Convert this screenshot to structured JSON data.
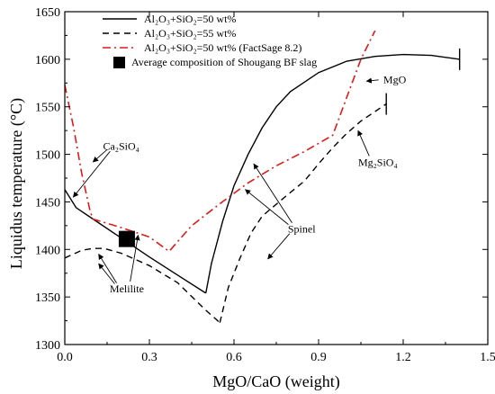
{
  "chart_data": {
    "type": "line",
    "xlabel": "MgO/CaO (weight)",
    "ylabel": "Liquidus temperature (°C)",
    "xlim": [
      0.0,
      1.5
    ],
    "ylim": [
      1300,
      1650
    ],
    "xticks": [
      0.0,
      0.3,
      0.6,
      0.9,
      1.2,
      1.5
    ],
    "xtick_labels": [
      "0.0",
      "0.3",
      "0.6",
      "0.9",
      "1.2",
      "1.5"
    ],
    "yticks": [
      1300,
      1350,
      1400,
      1450,
      1500,
      1550,
      1600,
      1650
    ],
    "ytick_labels": [
      "1300",
      "1350",
      "1400",
      "1450",
      "1500",
      "1550",
      "1600",
      "1650"
    ],
    "grid": false,
    "legend_position": "top-left",
    "series": [
      {
        "name": "Al₂O₃+SiO₂=50 wt%",
        "style": "solid",
        "color": "#000000",
        "segments": [
          [
            [
              0.0,
              1463
            ],
            [
              0.04,
              1444
            ],
            [
              0.1,
              1432
            ],
            [
              0.2,
              1412
            ],
            [
              0.3,
              1392
            ],
            [
              0.4,
              1373
            ],
            [
              0.5,
              1354
            ]
          ],
          [
            [
              0.5,
              1354
            ],
            [
              0.52,
              1385
            ],
            [
              0.56,
              1430
            ],
            [
              0.6,
              1467
            ],
            [
              0.65,
              1500
            ],
            [
              0.7,
              1528
            ],
            [
              0.75,
              1550
            ],
            [
              0.8,
              1566
            ],
            [
              0.9,
              1586
            ],
            [
              1.0,
              1598
            ],
            [
              1.1,
              1603
            ],
            [
              1.2,
              1605
            ],
            [
              1.3,
              1604
            ],
            [
              1.4,
              1600
            ]
          ]
        ],
        "end_marker": [
          1.4,
          1600
        ]
      },
      {
        "name": "Al₂O₃+SiO₂=55 wt%",
        "style": "dashed",
        "color": "#000000",
        "segments": [
          [
            [
              0.0,
              1391
            ],
            [
              0.06,
              1399
            ],
            [
              0.1,
              1401
            ],
            [
              0.14,
              1401
            ],
            [
              0.2,
              1396
            ],
            [
              0.3,
              1383
            ],
            [
              0.4,
              1365
            ],
            [
              0.5,
              1336
            ],
            [
              0.55,
              1323
            ]
          ],
          [
            [
              0.55,
              1323
            ],
            [
              0.58,
              1360
            ],
            [
              0.62,
              1390
            ],
            [
              0.66,
              1417
            ],
            [
              0.7,
              1435
            ],
            [
              0.78,
              1455
            ],
            [
              0.85,
              1472
            ],
            [
              0.9,
              1490
            ],
            [
              0.95,
              1507
            ],
            [
              1.0,
              1522
            ],
            [
              1.05,
              1535
            ],
            [
              1.1,
              1545
            ],
            [
              1.14,
              1553
            ]
          ]
        ],
        "end_marker": [
          1.14,
          1553
        ]
      },
      {
        "name": "Al₂O₃+SiO₂=50 wt% (FactSage 8.2)",
        "style": "dashdot",
        "color": "#e0191a",
        "segments": [
          [
            [
              0.0,
              1573
            ],
            [
              0.03,
              1530
            ],
            [
              0.06,
              1480
            ],
            [
              0.09,
              1440
            ],
            [
              0.1,
              1432
            ],
            [
              0.2,
              1423
            ],
            [
              0.3,
              1413
            ],
            [
              0.37,
              1398
            ],
            [
              0.45,
              1425
            ],
            [
              0.55,
              1448
            ],
            [
              0.65,
              1470
            ],
            [
              0.75,
              1488
            ],
            [
              0.85,
              1503
            ],
            [
              0.95,
              1520
            ],
            [
              1.0,
              1560
            ],
            [
              1.05,
              1600
            ],
            [
              1.1,
              1630
            ]
          ]
        ]
      }
    ],
    "points": [
      {
        "name": "Average composition of Shougang BF slag",
        "x": 0.22,
        "y": 1411,
        "marker": "square",
        "color": "#000000"
      }
    ],
    "annotations": [
      {
        "id": "ca2sio4",
        "text": "Ca₂SiO₄",
        "label_at": [
          0.2,
          1505
        ],
        "arrows_to": [
          [
            0.03,
            1455
          ],
          [
            0.1,
            1492
          ]
        ]
      },
      {
        "id": "mgo",
        "text": "MgO",
        "label_at": [
          1.17,
          1575
        ],
        "arrows_to": [
          [
            1.07,
            1577
          ]
        ]
      },
      {
        "id": "spinel",
        "text": "Spinel",
        "label_at": [
          0.84,
          1418
        ],
        "arrows_to": [
          [
            0.67,
            1490
          ],
          [
            0.64,
            1463
          ],
          [
            0.72,
            1390
          ]
        ]
      },
      {
        "id": "mg2sio4",
        "text": "Mg₂SiO₄",
        "label_at": [
          1.11,
          1488
        ],
        "arrows_to": [
          [
            1.04,
            1525
          ]
        ]
      },
      {
        "id": "melilite",
        "text": "Melilite",
        "label_at": [
          0.22,
          1355
        ],
        "arrows_to": [
          [
            0.12,
            1395
          ],
          [
            0.12,
            1385
          ],
          [
            0.26,
            1415
          ]
        ]
      }
    ]
  }
}
